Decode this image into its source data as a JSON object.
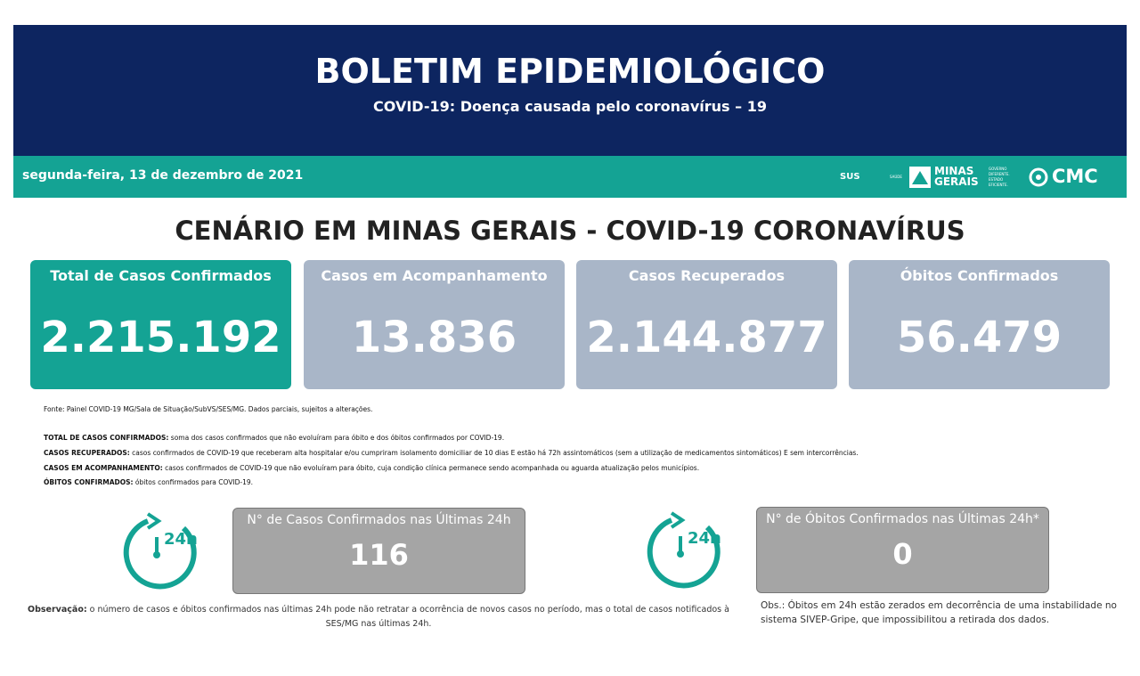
{
  "header": {
    "title": "BOLETIM EPIDEMIOLÓGICO",
    "subtitle": "COVID-19: Doença causada pelo coronavírus – 19",
    "date": "segunda-feira, 13 de dezembro de 2021",
    "logos": {
      "sus": "SUS",
      "saude": "SAÚDE",
      "minas": "MINAS",
      "gerais": "GERAIS",
      "slogan": "GOVERNO DIFERENTE. ESTADO EFICIENTE.",
      "cmc": "CMC"
    }
  },
  "heading": "CENÁRIO EM MINAS GERAIS - COVID-19 CORONAVÍRUS",
  "cards": [
    {
      "label": "Total de Casos Confirmados",
      "value": "2.215.192"
    },
    {
      "label": "Casos em Acompanhamento",
      "value": "13.836"
    },
    {
      "label": "Casos Recuperados",
      "value": "2.144.877"
    },
    {
      "label": "Óbitos Confirmados",
      "value": "56.479"
    }
  ],
  "source": "Fonte: Painel COVID-19 MG/Sala de Situação/SubVS/SES/MG. Dados parciais, sujeitos a alterações.",
  "definitions": [
    {
      "term": "TOTAL DE  CASOS CONFIRMADOS:",
      "text": " soma dos casos confirmados que não evoluíram para óbito e dos óbitos confirmados por COVID-19."
    },
    {
      "term": "CASOS RECUPERADOS:",
      "text": " casos confirmados de COVID-19 que receberam alta hospitalar e/ou cumpriram isolamento domiciliar de 10 dias E estão há 72h assintomáticos (sem a utilização de medicamentos sintomáticos) E sem intercorrências."
    },
    {
      "term": "CASOS EM ACOMPANHAMENTO:",
      "text": " casos confirmados de COVID-19 que não evoluíram para óbito, cuja condição clínica permanece sendo acompanhada ou aguarda atualização pelos municípios."
    },
    {
      "term": "ÓBITOS CONFIRMADOS:",
      "text": " óbitos confirmados para COVID-19."
    }
  ],
  "last24": [
    {
      "icon": "24h",
      "label": "N° de Casos Confirmados nas Últimas 24h",
      "value": "116"
    },
    {
      "icon": "24h",
      "label": "N° de Óbitos Confirmados nas Últimas 24h*",
      "value": "0"
    }
  ],
  "observation": {
    "term": "Observação:",
    "text": " o número de casos e óbitos confirmados nas últimas 24h pode não retratar a ocorrência de novos casos no período, mas o total de casos notificados à SES/MG nas últimas 24h."
  },
  "obs_deaths": "Obs.: Óbitos em 24h estão zerados em decorrência de uma instabilidade no sistema SIVEP-Gripe, que impossibilitou a retirada dos dados."
}
